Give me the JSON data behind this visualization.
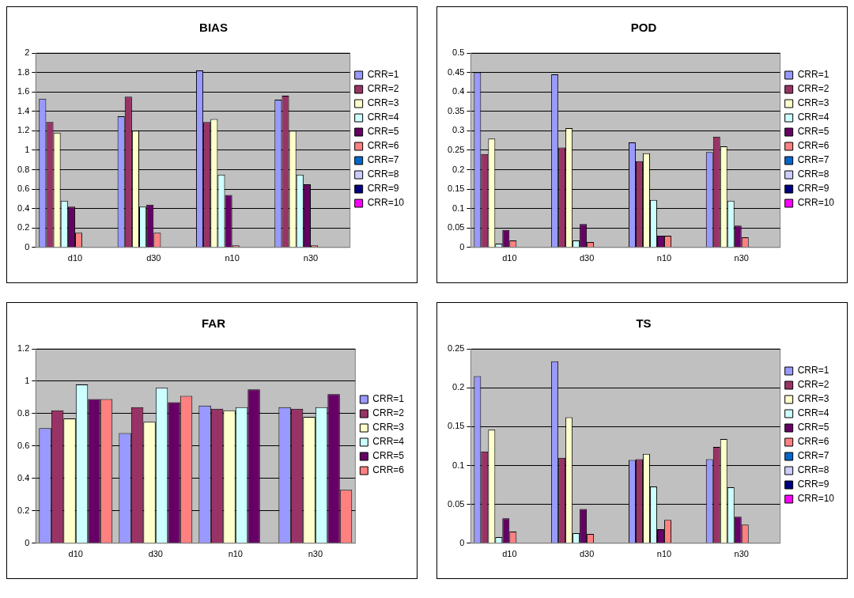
{
  "chart_data": [
    {
      "type": "bar",
      "title": "BIAS",
      "categories": [
        "d10",
        "d30",
        "n10",
        "n30"
      ],
      "ylim": [
        0,
        2
      ],
      "yticks": [
        0,
        0.2,
        0.4,
        0.6,
        0.8,
        1,
        1.2,
        1.4,
        1.6,
        1.8,
        2
      ],
      "grid": "y",
      "legend": "right",
      "series": [
        {
          "name": "CRR=1",
          "color": "#9999ff",
          "values": [
            1.53,
            1.35,
            1.82,
            1.52
          ]
        },
        {
          "name": "CRR=2",
          "color": "#993366",
          "values": [
            1.29,
            1.55,
            1.29,
            1.56
          ]
        },
        {
          "name": "CRR=3",
          "color": "#ffffcc",
          "values": [
            1.18,
            1.2,
            1.32,
            1.2
          ]
        },
        {
          "name": "CRR=4",
          "color": "#ccffff",
          "values": [
            0.48,
            0.42,
            0.75,
            0.75
          ]
        },
        {
          "name": "CRR=5",
          "color": "#660066",
          "values": [
            0.42,
            0.44,
            0.54,
            0.65
          ]
        },
        {
          "name": "CRR=6",
          "color": "#ff8080",
          "values": [
            0.15,
            0.15,
            0.02,
            0.02
          ]
        },
        {
          "name": "CRR=7",
          "color": "#0066cc",
          "values": [
            null,
            null,
            null,
            null
          ]
        },
        {
          "name": "CRR=8",
          "color": "#ccccff",
          "values": [
            null,
            null,
            null,
            null
          ]
        },
        {
          "name": "CRR=9",
          "color": "#000080",
          "values": [
            null,
            null,
            null,
            null
          ]
        },
        {
          "name": "CRR=10",
          "color": "#ff00ff",
          "values": [
            null,
            null,
            null,
            null
          ]
        }
      ]
    },
    {
      "type": "bar",
      "title": "POD",
      "categories": [
        "d10",
        "d30",
        "n10",
        "n30"
      ],
      "ylim": [
        0,
        0.5
      ],
      "yticks": [
        0,
        0.05,
        0.1,
        0.15,
        0.2,
        0.25,
        0.3,
        0.35,
        0.4,
        0.45,
        0.5
      ],
      "grid": "y",
      "legend": "right",
      "series": [
        {
          "name": "CRR=1",
          "color": "#9999ff",
          "values": [
            0.45,
            0.445,
            0.27,
            0.245
          ]
        },
        {
          "name": "CRR=2",
          "color": "#993366",
          "values": [
            0.24,
            0.257,
            0.222,
            0.285
          ]
        },
        {
          "name": "CRR=3",
          "color": "#ffffcc",
          "values": [
            0.28,
            0.307,
            0.242,
            0.26
          ]
        },
        {
          "name": "CRR=4",
          "color": "#ccffff",
          "values": [
            0.01,
            0.018,
            0.122,
            0.12
          ]
        },
        {
          "name": "CRR=5",
          "color": "#660066",
          "values": [
            0.045,
            0.06,
            0.03,
            0.056
          ]
        },
        {
          "name": "CRR=6",
          "color": "#ff8080",
          "values": [
            0.018,
            0.014,
            0.03,
            0.026
          ]
        },
        {
          "name": "CRR=7",
          "color": "#0066cc",
          "values": [
            null,
            null,
            null,
            null
          ]
        },
        {
          "name": "CRR=8",
          "color": "#ccccff",
          "values": [
            null,
            null,
            null,
            null
          ]
        },
        {
          "name": "CRR=9",
          "color": "#000080",
          "values": [
            null,
            null,
            null,
            null
          ]
        },
        {
          "name": "CRR=10",
          "color": "#ff00ff",
          "values": [
            null,
            null,
            null,
            null
          ]
        }
      ]
    },
    {
      "type": "bar",
      "title": "FAR",
      "categories": [
        "d10",
        "d30",
        "n10",
        "n30"
      ],
      "ylim": [
        0,
        1.2
      ],
      "yticks": [
        0,
        0.2,
        0.4,
        0.6,
        0.8,
        1,
        1.2
      ],
      "grid": "y",
      "legend": "right",
      "series": [
        {
          "name": "CRR=1",
          "color": "#9999ff",
          "values": [
            0.71,
            0.68,
            0.85,
            0.84
          ]
        },
        {
          "name": "CRR=2",
          "color": "#993366",
          "values": [
            0.82,
            0.84,
            0.83,
            0.83
          ]
        },
        {
          "name": "CRR=3",
          "color": "#ffffcc",
          "values": [
            0.77,
            0.75,
            0.82,
            0.78
          ]
        },
        {
          "name": "CRR=4",
          "color": "#ccffff",
          "values": [
            0.98,
            0.96,
            0.84,
            0.84
          ]
        },
        {
          "name": "CRR=5",
          "color": "#660066",
          "values": [
            0.89,
            0.87,
            0.95,
            0.92
          ]
        },
        {
          "name": "CRR=6",
          "color": "#ff8080",
          "values": [
            0.89,
            0.91,
            null,
            0.33
          ]
        }
      ]
    },
    {
      "type": "bar",
      "title": "TS",
      "categories": [
        "d10",
        "d30",
        "n10",
        "n30"
      ],
      "ylim": [
        0,
        0.25
      ],
      "yticks": [
        0,
        0.05,
        0.1,
        0.15,
        0.2,
        0.25
      ],
      "grid": "y",
      "legend": "right",
      "series": [
        {
          "name": "CRR=1",
          "color": "#9999ff",
          "values": [
            0.215,
            0.234,
            0.107,
            0.108
          ]
        },
        {
          "name": "CRR=2",
          "color": "#993366",
          "values": [
            0.118,
            0.11,
            0.108,
            0.124
          ]
        },
        {
          "name": "CRR=3",
          "color": "#ffffcc",
          "values": [
            0.146,
            0.162,
            0.115,
            0.134
          ]
        },
        {
          "name": "CRR=4",
          "color": "#ccffff",
          "values": [
            0.008,
            0.013,
            0.073,
            0.072
          ]
        },
        {
          "name": "CRR=5",
          "color": "#660066",
          "values": [
            0.032,
            0.044,
            0.018,
            0.034
          ]
        },
        {
          "name": "CRR=6",
          "color": "#ff8080",
          "values": [
            0.015,
            0.012,
            0.03,
            0.024
          ]
        },
        {
          "name": "CRR=7",
          "color": "#0066cc",
          "values": [
            null,
            null,
            null,
            null
          ]
        },
        {
          "name": "CRR=8",
          "color": "#ccccff",
          "values": [
            null,
            null,
            null,
            null
          ]
        },
        {
          "name": "CRR=9",
          "color": "#000080",
          "values": [
            null,
            null,
            null,
            null
          ]
        },
        {
          "name": "CRR=10",
          "color": "#ff00ff",
          "values": [
            null,
            null,
            null,
            null
          ]
        }
      ]
    }
  ]
}
